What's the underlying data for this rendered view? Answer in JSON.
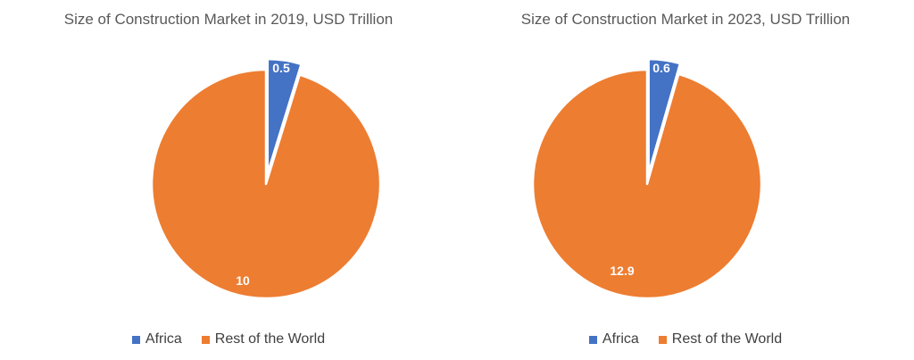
{
  "chart_data": [
    {
      "type": "pie",
      "title": "Size of Construction Market in 2019, USD Trillion",
      "categories": [
        "Africa",
        "Rest of the World"
      ],
      "values": [
        0.5,
        10
      ],
      "data_labels": [
        "0.5",
        "10"
      ],
      "colors": [
        "#4472c4",
        "#ed7d31"
      ],
      "exploded": [
        "Africa"
      ],
      "legend_position": "bottom"
    },
    {
      "type": "pie",
      "title": "Size of Construction Market in 2023, USD Trillion",
      "categories": [
        "Africa",
        "Rest of the World"
      ],
      "values": [
        0.6,
        12.9
      ],
      "data_labels": [
        "0.6",
        "12.9"
      ],
      "colors": [
        "#4472c4",
        "#ed7d31"
      ],
      "exploded": [
        "Africa"
      ],
      "legend_position": "bottom"
    }
  ]
}
